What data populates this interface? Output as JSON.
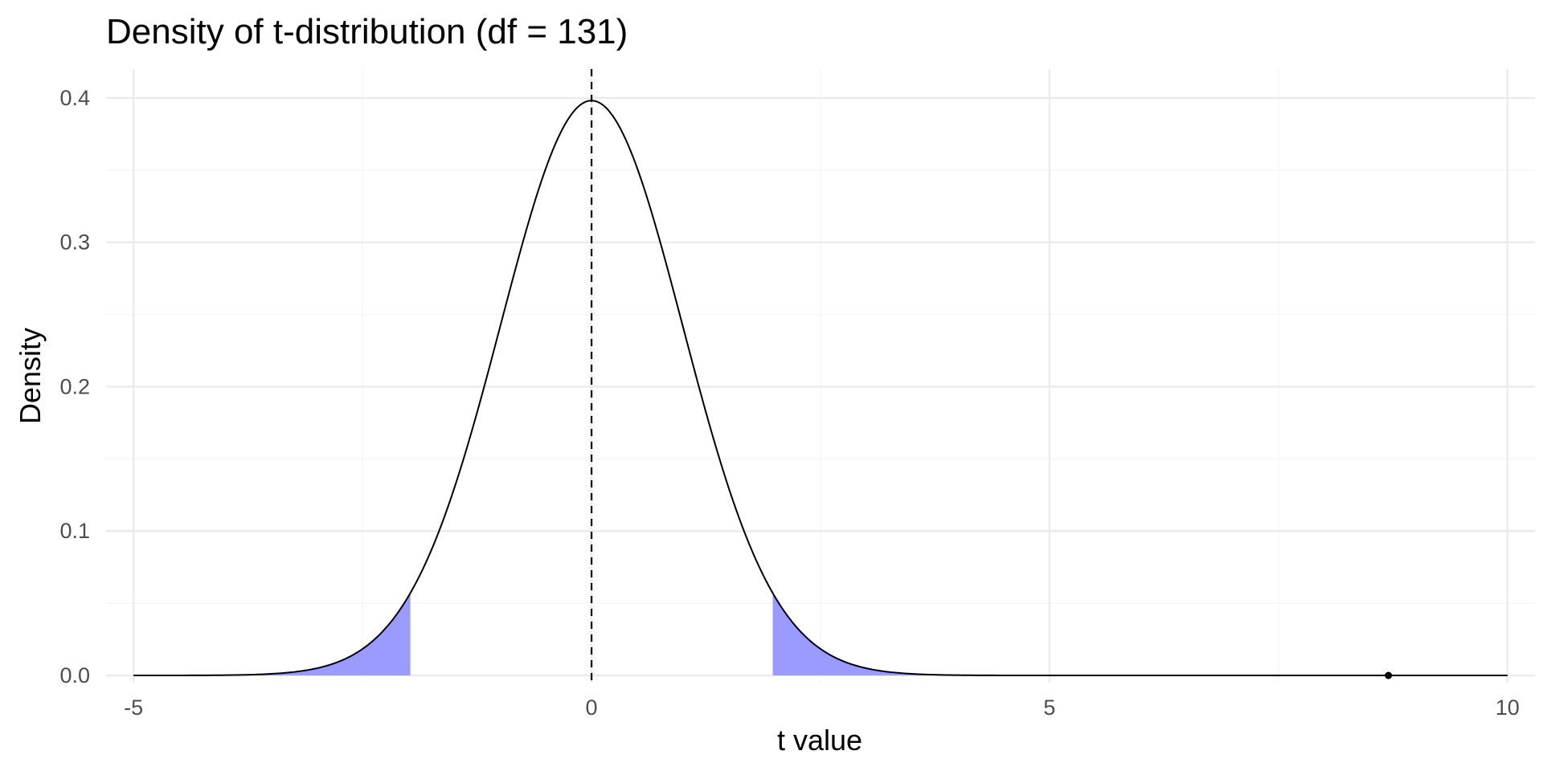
{
  "chart_data": {
    "type": "area",
    "title": "Density of t-distribution (df = 131)",
    "xlabel": "t value",
    "ylabel": "Density",
    "df": 131,
    "xlim": [
      -5.3,
      10.3
    ],
    "ylim": [
      -0.005,
      0.42
    ],
    "x_ticks": [
      -5,
      0,
      5,
      10
    ],
    "x_tick_labels": [
      "-5",
      "0",
      "5",
      "10"
    ],
    "x_minor_ticks": [
      -2.5,
      2.5,
      7.5
    ],
    "y_ticks": [
      0.0,
      0.1,
      0.2,
      0.3,
      0.4
    ],
    "y_tick_labels": [
      "0.0",
      "0.1",
      "0.2",
      "0.3",
      "0.4"
    ],
    "y_minor_ticks": [
      0.05,
      0.15,
      0.25,
      0.35
    ],
    "grid": true,
    "curve": {
      "name": "",
      "x_range": [
        -5,
        10
      ],
      "color": "#000000"
    },
    "shaded_regions": [
      {
        "x_range": [
          -5,
          -1.978
        ],
        "color": "#9b9bff"
      },
      {
        "x_range": [
          1.978,
          10
        ],
        "color": "#9b9bff"
      }
    ],
    "vline": {
      "x": 0,
      "style": "dashed",
      "color": "#000000"
    },
    "point": {
      "x": 8.7,
      "y": 0.0,
      "color": "#000000"
    }
  }
}
